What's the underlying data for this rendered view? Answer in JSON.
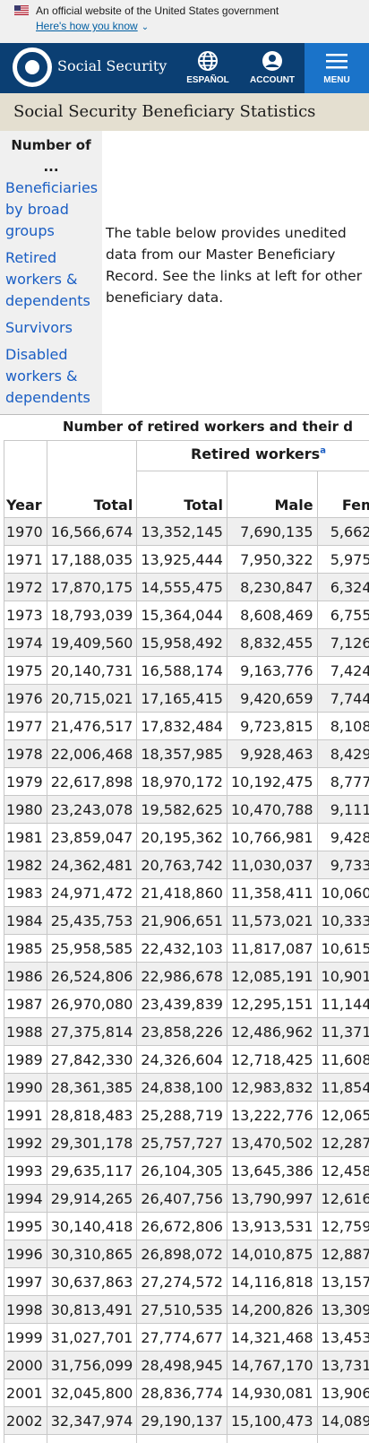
{
  "gov_banner": {
    "text": "An official website of the United States government",
    "link": "Here's how you know"
  },
  "header": {
    "brand": "Social Security",
    "espanol": "ESPAÑOL",
    "account": "ACCOUNT",
    "menu": "MENU"
  },
  "page": {
    "title": "Social Security Beneficiary Statistics"
  },
  "sidenav": {
    "heading": "Number of ...",
    "items": [
      {
        "label": "Beneficiaries by broad groups"
      },
      {
        "label": "Retired workers & dependents"
      },
      {
        "label": "Survivors"
      },
      {
        "label": "Disabled workers & dependents"
      }
    ]
  },
  "intro": "The table below provides unedited data from our Master Beneficiary Record. See the links at left for other beneficiary data.",
  "table": {
    "caption": "Number of retired workers and their d",
    "group_header": "Retired workers",
    "group_footnote": "a",
    "columns": {
      "year": "Year",
      "total": "Total",
      "rw_total": "Total",
      "male": "Male",
      "female": "Fem"
    },
    "rows": [
      {
        "year": "1970",
        "total": "16,566,674",
        "rw_total": "13,352,145",
        "male": "7,690,135",
        "female": "5,662,"
      },
      {
        "year": "1971",
        "total": "17,188,035",
        "rw_total": "13,925,444",
        "male": "7,950,322",
        "female": "5,975,"
      },
      {
        "year": "1972",
        "total": "17,870,175",
        "rw_total": "14,555,475",
        "male": "8,230,847",
        "female": "6,324,"
      },
      {
        "year": "1973",
        "total": "18,793,039",
        "rw_total": "15,364,044",
        "male": "8,608,469",
        "female": "6,755,"
      },
      {
        "year": "1974",
        "total": "19,409,560",
        "rw_total": "15,958,492",
        "male": "8,832,455",
        "female": "7,126,"
      },
      {
        "year": "1975",
        "total": "20,140,731",
        "rw_total": "16,588,174",
        "male": "9,163,776",
        "female": "7,424,"
      },
      {
        "year": "1976",
        "total": "20,715,021",
        "rw_total": "17,165,415",
        "male": "9,420,659",
        "female": "7,744,"
      },
      {
        "year": "1977",
        "total": "21,476,517",
        "rw_total": "17,832,484",
        "male": "9,723,815",
        "female": "8,108,"
      },
      {
        "year": "1978",
        "total": "22,006,468",
        "rw_total": "18,357,985",
        "male": "9,928,463",
        "female": "8,429,"
      },
      {
        "year": "1979",
        "total": "22,617,898",
        "rw_total": "18,970,172",
        "male": "10,192,475",
        "female": "8,777,"
      },
      {
        "year": "1980",
        "total": "23,243,078",
        "rw_total": "19,582,625",
        "male": "10,470,788",
        "female": "9,111,"
      },
      {
        "year": "1981",
        "total": "23,859,047",
        "rw_total": "20,195,362",
        "male": "10,766,981",
        "female": "9,428,"
      },
      {
        "year": "1982",
        "total": "24,362,481",
        "rw_total": "20,763,742",
        "male": "11,030,037",
        "female": "9,733,"
      },
      {
        "year": "1983",
        "total": "24,971,472",
        "rw_total": "21,418,860",
        "male": "11,358,411",
        "female": "10,060,"
      },
      {
        "year": "1984",
        "total": "25,435,753",
        "rw_total": "21,906,651",
        "male": "11,573,021",
        "female": "10,333,"
      },
      {
        "year": "1985",
        "total": "25,958,585",
        "rw_total": "22,432,103",
        "male": "11,817,087",
        "female": "10,615,"
      },
      {
        "year": "1986",
        "total": "26,524,806",
        "rw_total": "22,986,678",
        "male": "12,085,191",
        "female": "10,901,"
      },
      {
        "year": "1987",
        "total": "26,970,080",
        "rw_total": "23,439,839",
        "male": "12,295,151",
        "female": "11,144,"
      },
      {
        "year": "1988",
        "total": "27,375,814",
        "rw_total": "23,858,226",
        "male": "12,486,962",
        "female": "11,371,"
      },
      {
        "year": "1989",
        "total": "27,842,330",
        "rw_total": "24,326,604",
        "male": "12,718,425",
        "female": "11,608,"
      },
      {
        "year": "1990",
        "total": "28,361,385",
        "rw_total": "24,838,100",
        "male": "12,983,832",
        "female": "11,854,"
      },
      {
        "year": "1991",
        "total": "28,818,483",
        "rw_total": "25,288,719",
        "male": "13,222,776",
        "female": "12,065,"
      },
      {
        "year": "1992",
        "total": "29,301,178",
        "rw_total": "25,757,727",
        "male": "13,470,502",
        "female": "12,287,"
      },
      {
        "year": "1993",
        "total": "29,635,117",
        "rw_total": "26,104,305",
        "male": "13,645,386",
        "female": "12,458,"
      },
      {
        "year": "1994",
        "total": "29,914,265",
        "rw_total": "26,407,756",
        "male": "13,790,997",
        "female": "12,616,"
      },
      {
        "year": "1995",
        "total": "30,140,418",
        "rw_total": "26,672,806",
        "male": "13,913,531",
        "female": "12,759,"
      },
      {
        "year": "1996",
        "total": "30,310,865",
        "rw_total": "26,898,072",
        "male": "14,010,875",
        "female": "12,887,"
      },
      {
        "year": "1997",
        "total": "30,637,863",
        "rw_total": "27,274,572",
        "male": "14,116,818",
        "female": "13,157,"
      },
      {
        "year": "1998",
        "total": "30,813,491",
        "rw_total": "27,510,535",
        "male": "14,200,826",
        "female": "13,309,"
      },
      {
        "year": "1999",
        "total": "31,027,701",
        "rw_total": "27,774,677",
        "male": "14,321,468",
        "female": "13,453,"
      },
      {
        "year": "2000",
        "total": "31,756,099",
        "rw_total": "28,498,945",
        "male": "14,767,170",
        "female": "13,731,"
      },
      {
        "year": "2001",
        "total": "32,045,800",
        "rw_total": "28,836,774",
        "male": "14,930,081",
        "female": "13,906,"
      },
      {
        "year": "2002",
        "total": "32,347,974",
        "rw_total": "29,190,137",
        "male": "15,100,473",
        "female": "14,089,"
      },
      {
        "year": "",
        "total": "",
        "rw_total": "",
        "male": "",
        "female": ""
      }
    ]
  },
  "colors": {
    "header_bg": "#0b3f73",
    "menu_bg": "#1a73c9",
    "title_bg": "#e4dfd0",
    "sidenav_bg": "#f0f0f0",
    "link": "#1a5ec4",
    "row_stripe": "#efefef"
  },
  "icons": {
    "flag": "us-flag-icon",
    "chevron": "chevron-down-icon",
    "espanol": "globe-icon",
    "account": "user-circle-icon",
    "menu": "hamburger-icon",
    "seal": "ssa-seal-icon"
  }
}
